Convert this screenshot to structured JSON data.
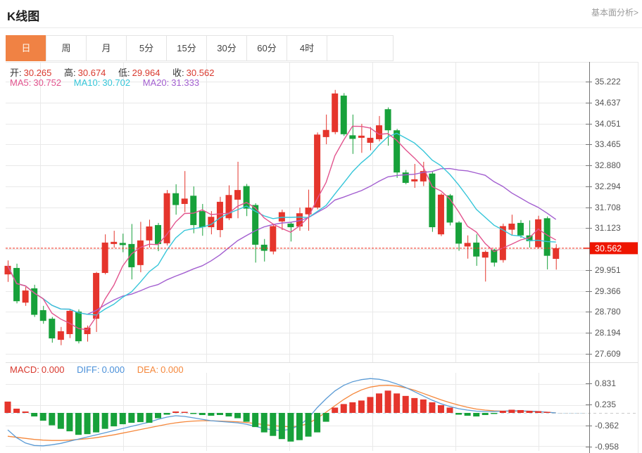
{
  "header": {
    "title": "K线图",
    "link": "基本面分析>"
  },
  "tabs": {
    "items": [
      {
        "label": "日",
        "active": true
      },
      {
        "label": "周",
        "active": false
      },
      {
        "label": "月",
        "active": false
      },
      {
        "label": "5分",
        "active": false
      },
      {
        "label": "15分",
        "active": false
      },
      {
        "label": "30分",
        "active": false
      },
      {
        "label": "60分",
        "active": false
      },
      {
        "label": "4时",
        "active": false
      }
    ]
  },
  "ohlc": {
    "o_label": "开:",
    "o": "30.265",
    "h_label": "高:",
    "h": "30.674",
    "l_label": "低:",
    "l": "29.964",
    "c_label": "收:",
    "c": "30.562"
  },
  "ma": {
    "ma5_label": "MA5:",
    "ma5": "30.752",
    "ma10_label": "MA10:",
    "ma10": "30.702",
    "ma20_label": "MA20:",
    "ma20": "31.333"
  },
  "macd_legend": {
    "macd_label": "MACD:",
    "macd": "0.000",
    "diff_label": "DIFF:",
    "diff": "0.000",
    "dea_label": "DEA:",
    "dea": "0.000"
  },
  "colors": {
    "up": "#e5352c",
    "down": "#17a13a",
    "ma5": "#e2548e",
    "ma10": "#36c6d9",
    "ma20": "#a35fd0",
    "diff_line": "#5b9bd5",
    "dea_line": "#f5883c",
    "price_line": "#f22c1d",
    "badge_bg": "#ee1500",
    "badge_text": "#ffffff",
    "tab_accent": "#f08244",
    "grid": "#e9e9e9",
    "axis": "#777777",
    "tick_text": "#555555",
    "zero_dash": "#bcd9ea"
  },
  "chart_data": {
    "type": "candlestick",
    "title": "K线图 (daily K-line with MACD)",
    "grid": true,
    "main_pane": {
      "ylim": [
        27.609,
        35.222
      ],
      "y_ticks": [
        "35.222",
        "34.637",
        "34.051",
        "33.465",
        "32.880",
        "32.294",
        "31.708",
        "31.123",
        "29.951",
        "29.366",
        "28.780",
        "28.194",
        "27.609"
      ],
      "current_price": "30.562",
      "ma_periods": [
        5,
        10,
        20
      ],
      "candles_ohlc_hi_lo_close_note": "each item is [open, high, low, close]",
      "candles": [
        [
          29.83,
          30.22,
          29.62,
          30.07
        ],
        [
          30.01,
          30.13,
          29.02,
          29.08
        ],
        [
          29.04,
          29.48,
          28.95,
          29.38
        ],
        [
          29.44,
          29.54,
          28.64,
          28.7
        ],
        [
          28.83,
          28.95,
          28.45,
          28.53
        ],
        [
          28.59,
          28.64,
          27.92,
          28.04
        ],
        [
          28.0,
          28.36,
          27.85,
          28.24
        ],
        [
          28.16,
          28.85,
          28.05,
          28.81
        ],
        [
          28.79,
          28.85,
          27.9,
          27.96
        ],
        [
          28.16,
          28.4,
          27.95,
          28.34
        ],
        [
          28.59,
          29.9,
          28.22,
          29.87
        ],
        [
          29.87,
          30.95,
          29.83,
          30.72
        ],
        [
          30.68,
          31.05,
          30.58,
          30.74
        ],
        [
          30.71,
          30.97,
          30.45,
          30.65
        ],
        [
          30.68,
          31.24,
          29.69,
          30.03
        ],
        [
          30.09,
          31.3,
          29.89,
          30.78
        ],
        [
          30.78,
          31.36,
          30.58,
          31.17
        ],
        [
          31.21,
          31.27,
          30.48,
          30.68
        ],
        [
          30.7,
          32.19,
          30.64,
          32.1
        ],
        [
          32.1,
          32.35,
          31.5,
          31.77
        ],
        [
          31.8,
          32.72,
          31.57,
          31.95
        ],
        [
          32.03,
          32.29,
          30.98,
          31.21
        ],
        [
          31.6,
          31.8,
          30.91,
          31.15
        ],
        [
          31.15,
          31.6,
          30.95,
          31.44
        ],
        [
          31.07,
          32.0,
          30.87,
          31.86
        ],
        [
          31.4,
          32.32,
          31.35,
          32.05
        ],
        [
          31.92,
          32.98,
          31.4,
          32.19
        ],
        [
          32.3,
          32.36,
          31.46,
          31.67
        ],
        [
          31.77,
          31.82,
          30.16,
          30.66
        ],
        [
          30.66,
          30.82,
          30.19,
          30.49
        ],
        [
          30.47,
          31.25,
          30.39,
          31.18
        ],
        [
          31.31,
          31.64,
          31.07,
          31.57
        ],
        [
          31.25,
          31.3,
          30.75,
          31.15
        ],
        [
          31.17,
          31.7,
          31.05,
          31.54
        ],
        [
          31.51,
          32.2,
          31.05,
          31.7
        ],
        [
          31.7,
          33.8,
          31.65,
          33.74
        ],
        [
          33.67,
          34.3,
          33.47,
          33.87
        ],
        [
          33.81,
          34.99,
          33.75,
          34.89
        ],
        [
          34.83,
          34.9,
          33.7,
          33.75
        ],
        [
          33.72,
          34.3,
          33.2,
          33.62
        ],
        [
          33.65,
          34.04,
          33.23,
          33.71
        ],
        [
          33.51,
          33.95,
          33.3,
          33.65
        ],
        [
          33.61,
          34.26,
          33.55,
          34.0
        ],
        [
          34.45,
          34.5,
          33.43,
          33.86
        ],
        [
          33.86,
          33.9,
          32.53,
          32.68
        ],
        [
          32.68,
          32.75,
          32.35,
          32.39
        ],
        [
          32.43,
          32.92,
          32.25,
          32.49
        ],
        [
          32.43,
          32.98,
          32.3,
          32.72
        ],
        [
          32.65,
          32.7,
          31.02,
          31.15
        ],
        [
          30.95,
          32.1,
          30.9,
          32.06
        ],
        [
          32.04,
          32.08,
          31.2,
          31.28
        ],
        [
          31.28,
          31.32,
          30.49,
          30.69
        ],
        [
          30.61,
          30.92,
          30.27,
          30.71
        ],
        [
          30.72,
          30.95,
          30.07,
          30.33
        ],
        [
          30.3,
          30.5,
          29.63,
          30.46
        ],
        [
          30.52,
          30.55,
          30.05,
          30.16
        ],
        [
          30.23,
          31.25,
          30.16,
          31.18
        ],
        [
          31.08,
          31.5,
          30.92,
          31.25
        ],
        [
          31.27,
          31.35,
          30.85,
          30.92
        ],
        [
          30.92,
          31.34,
          30.58,
          30.76
        ],
        [
          30.59,
          31.47,
          30.55,
          31.37
        ],
        [
          31.4,
          31.45,
          29.97,
          30.35
        ],
        [
          30.265,
          30.674,
          29.964,
          30.562
        ]
      ]
    },
    "macd_pane": {
      "ylim": [
        -0.958,
        0.831
      ],
      "y_ticks": [
        "0.831",
        "0.235",
        "-0.362",
        "-0.958"
      ],
      "histogram": [
        0.32,
        0.12,
        0.04,
        -0.1,
        -0.22,
        -0.35,
        -0.45,
        -0.52,
        -0.62,
        -0.6,
        -0.55,
        -0.45,
        -0.38,
        -0.32,
        -0.28,
        -0.26,
        -0.28,
        -0.15,
        -0.05,
        0.04,
        0.03,
        -0.03,
        -0.06,
        -0.08,
        -0.06,
        -0.1,
        -0.15,
        -0.25,
        -0.4,
        -0.55,
        -0.65,
        -0.74,
        -0.81,
        -0.77,
        -0.67,
        -0.55,
        -0.25,
        0.15,
        0.25,
        0.3,
        0.35,
        0.45,
        0.55,
        0.63,
        0.55,
        0.48,
        0.42,
        0.38,
        0.3,
        0.22,
        0.15,
        -0.05,
        -0.08,
        -0.1,
        -0.06,
        -0.03,
        0.06,
        0.09,
        0.08,
        0.06,
        0.05,
        0.03,
        0.0
      ],
      "diff": [
        -0.48,
        -0.7,
        -0.85,
        -0.92,
        -0.93,
        -0.9,
        -0.86,
        -0.8,
        -0.74,
        -0.68,
        -0.62,
        -0.56,
        -0.5,
        -0.44,
        -0.38,
        -0.32,
        -0.26,
        -0.18,
        -0.12,
        -0.08,
        -0.1,
        -0.14,
        -0.18,
        -0.22,
        -0.24,
        -0.26,
        -0.28,
        -0.32,
        -0.38,
        -0.44,
        -0.48,
        -0.5,
        -0.46,
        -0.35,
        -0.15,
        0.15,
        0.4,
        0.62,
        0.78,
        0.88,
        0.94,
        0.97,
        0.95,
        0.9,
        0.82,
        0.72,
        0.6,
        0.48,
        0.36,
        0.26,
        0.18,
        0.12,
        0.08,
        0.05,
        0.04,
        0.04,
        0.05,
        0.06,
        0.06,
        0.05,
        0.04,
        0.02,
        0.0
      ],
      "dea": [
        -0.66,
        -0.69,
        -0.72,
        -0.75,
        -0.77,
        -0.78,
        -0.78,
        -0.77,
        -0.75,
        -0.73,
        -0.7,
        -0.66,
        -0.62,
        -0.57,
        -0.52,
        -0.47,
        -0.42,
        -0.37,
        -0.32,
        -0.28,
        -0.25,
        -0.23,
        -0.22,
        -0.22,
        -0.23,
        -0.24,
        -0.25,
        -0.27,
        -0.3,
        -0.33,
        -0.36,
        -0.38,
        -0.39,
        -0.37,
        -0.3,
        -0.15,
        0.02,
        0.2,
        0.38,
        0.53,
        0.65,
        0.73,
        0.77,
        0.78,
        0.76,
        0.71,
        0.64,
        0.55,
        0.46,
        0.37,
        0.29,
        0.22,
        0.16,
        0.11,
        0.08,
        0.06,
        0.05,
        0.05,
        0.05,
        0.04,
        0.03,
        0.02,
        0.0
      ]
    }
  }
}
